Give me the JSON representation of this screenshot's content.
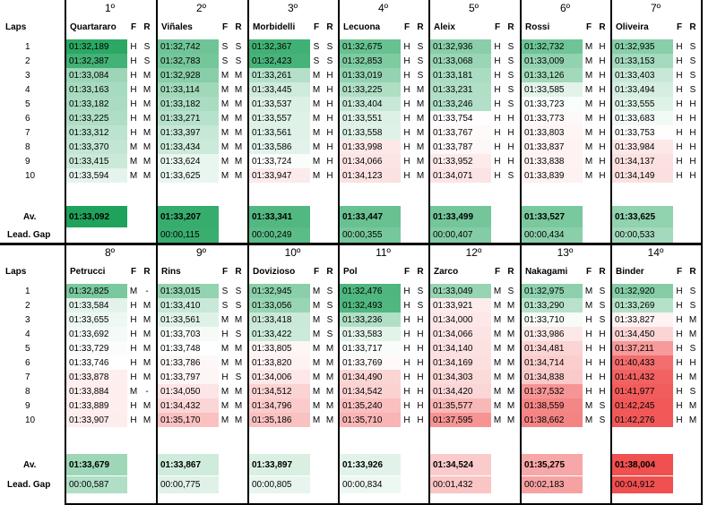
{
  "labels": {
    "laps": "Laps",
    "av": "Av.",
    "gap": "Lead. Gap",
    "f": "F",
    "r": "R"
  },
  "lap_numbers": [
    "1",
    "2",
    "3",
    "4",
    "5",
    "6",
    "7",
    "8",
    "9",
    "10"
  ],
  "colors": {
    "green_scale": "#1fa35c",
    "red_scale": "#f05050"
  },
  "blocks": [
    {
      "riders": [
        {
          "pos": "1º",
          "name": "Quartararo",
          "laps": [
            [
              "01:32,189",
              "H",
              "S"
            ],
            [
              "01:32,387",
              "H",
              "S"
            ],
            [
              "01:33,084",
              "H",
              "M"
            ],
            [
              "01:33,163",
              "H",
              "M"
            ],
            [
              "01:33,182",
              "H",
              "M"
            ],
            [
              "01:33,225",
              "H",
              "M"
            ],
            [
              "01:33,312",
              "H",
              "M"
            ],
            [
              "01:33,370",
              "M",
              "M"
            ],
            [
              "01:33,415",
              "M",
              "M"
            ],
            [
              "01:33,594",
              "M",
              "M"
            ]
          ],
          "av": "01:33,092",
          "gap": ""
        },
        {
          "pos": "2º",
          "name": "Viñales",
          "laps": [
            [
              "01:32,742",
              "S",
              "S"
            ],
            [
              "01:32,783",
              "S",
              "S"
            ],
            [
              "01:32,928",
              "M",
              "M"
            ],
            [
              "01:33,114",
              "M",
              "M"
            ],
            [
              "01:33,182",
              "M",
              "M"
            ],
            [
              "01:33,271",
              "M",
              "M"
            ],
            [
              "01:33,397",
              "M",
              "M"
            ],
            [
              "01:33,434",
              "M",
              "M"
            ],
            [
              "01:33,624",
              "M",
              "M"
            ],
            [
              "01:33,625",
              "M",
              "M"
            ]
          ],
          "av": "01:33,207",
          "gap": "00:00,115"
        },
        {
          "pos": "3º",
          "name": "Morbidelli",
          "laps": [
            [
              "01:32,367",
              "S",
              "S"
            ],
            [
              "01:32,423",
              "S",
              "S"
            ],
            [
              "01:33,261",
              "M",
              "H"
            ],
            [
              "01:33,445",
              "M",
              "H"
            ],
            [
              "01:33,537",
              "M",
              "H"
            ],
            [
              "01:33,557",
              "M",
              "H"
            ],
            [
              "01:33,561",
              "M",
              "H"
            ],
            [
              "01:33,586",
              "M",
              "H"
            ],
            [
              "01:33,724",
              "M",
              "H"
            ],
            [
              "01:33,947",
              "M",
              "H"
            ]
          ],
          "av": "01:33,341",
          "gap": "00:00,249"
        },
        {
          "pos": "4º",
          "name": "Lecuona",
          "laps": [
            [
              "01:32,675",
              "H",
              "S"
            ],
            [
              "01:32,853",
              "H",
              "S"
            ],
            [
              "01:33,019",
              "H",
              "S"
            ],
            [
              "01:33,225",
              "H",
              "M"
            ],
            [
              "01:33,404",
              "H",
              "M"
            ],
            [
              "01:33,551",
              "H",
              "M"
            ],
            [
              "01:33,558",
              "H",
              "M"
            ],
            [
              "01:33,998",
              "H",
              "M"
            ],
            [
              "01:34,066",
              "H",
              "M"
            ],
            [
              "01:34,123",
              "H",
              "M"
            ]
          ],
          "av": "01:33,447",
          "gap": "00:00,355"
        },
        {
          "pos": "5º",
          "name": "Aleix",
          "laps": [
            [
              "01:32,936",
              "H",
              "S"
            ],
            [
              "01:33,068",
              "H",
              "S"
            ],
            [
              "01:33,181",
              "H",
              "S"
            ],
            [
              "01:33,231",
              "H",
              "S"
            ],
            [
              "01:33,246",
              "H",
              "S"
            ],
            [
              "01:33,754",
              "H",
              "H"
            ],
            [
              "01:33,767",
              "H",
              "H"
            ],
            [
              "01:33,787",
              "H",
              "H"
            ],
            [
              "01:33,952",
              "H",
              "H"
            ],
            [
              "01:34,071",
              "H",
              "S"
            ]
          ],
          "av": "01:33,499",
          "gap": "00:00,407"
        },
        {
          "pos": "6º",
          "name": "Rossi",
          "laps": [
            [
              "01:32,732",
              "M",
              "H"
            ],
            [
              "01:33,009",
              "M",
              "H"
            ],
            [
              "01:33,126",
              "M",
              "H"
            ],
            [
              "01:33,585",
              "M",
              "H"
            ],
            [
              "01:33,723",
              "M",
              "H"
            ],
            [
              "01:33,773",
              "M",
              "H"
            ],
            [
              "01:33,803",
              "M",
              "H"
            ],
            [
              "01:33,837",
              "M",
              "H"
            ],
            [
              "01:33,838",
              "M",
              "H"
            ],
            [
              "01:33,839",
              "M",
              "H"
            ]
          ],
          "av": "01:33,527",
          "gap": "00:00,434"
        },
        {
          "pos": "7º",
          "name": "Oliveira",
          "laps": [
            [
              "01:32,935",
              "H",
              "S"
            ],
            [
              "01:33,153",
              "H",
              "S"
            ],
            [
              "01:33,403",
              "H",
              "S"
            ],
            [
              "01:33,494",
              "H",
              "S"
            ],
            [
              "01:33,555",
              "H",
              "H"
            ],
            [
              "01:33,683",
              "H",
              "H"
            ],
            [
              "01:33,753",
              "H",
              "H"
            ],
            [
              "01:33,984",
              "H",
              "H"
            ],
            [
              "01:34,137",
              "H",
              "H"
            ],
            [
              "01:34,149",
              "H",
              "H"
            ]
          ],
          "av": "01:33,625",
          "gap": "00:00,533"
        }
      ]
    },
    {
      "riders": [
        {
          "pos": "8º",
          "name": "Petrucci",
          "laps": [
            [
              "01:32,825",
              "M",
              "-"
            ],
            [
              "01:33,584",
              "H",
              "M"
            ],
            [
              "01:33,655",
              "H",
              "M"
            ],
            [
              "01:33,692",
              "H",
              "M"
            ],
            [
              "01:33,729",
              "H",
              "M"
            ],
            [
              "01:33,746",
              "H",
              "M"
            ],
            [
              "01:33,878",
              "H",
              "M"
            ],
            [
              "01:33,884",
              "M",
              "-"
            ],
            [
              "01:33,889",
              "H",
              "M"
            ],
            [
              "01:33,907",
              "H",
              "M"
            ]
          ],
          "av": "01:33,679",
          "gap": "00:00,587"
        },
        {
          "pos": "9º",
          "name": "Rins",
          "laps": [
            [
              "01:33,015",
              "S",
              "S"
            ],
            [
              "01:33,410",
              "S",
              "S"
            ],
            [
              "01:33,561",
              "M",
              "M"
            ],
            [
              "01:33,703",
              "H",
              "S"
            ],
            [
              "01:33,748",
              "M",
              "M"
            ],
            [
              "01:33,786",
              "M",
              "M"
            ],
            [
              "01:33,797",
              "H",
              "S"
            ],
            [
              "01:34,050",
              "M",
              "M"
            ],
            [
              "01:34,432",
              "M",
              "M"
            ],
            [
              "01:35,170",
              "M",
              "M"
            ]
          ],
          "av": "01:33,867",
          "gap": "00:00,775"
        },
        {
          "pos": "10º",
          "name": "Dovizioso",
          "laps": [
            [
              "01:32,945",
              "M",
              "S"
            ],
            [
              "01:33,056",
              "M",
              "S"
            ],
            [
              "01:33,418",
              "M",
              "S"
            ],
            [
              "01:33,422",
              "M",
              "S"
            ],
            [
              "01:33,805",
              "M",
              "M"
            ],
            [
              "01:33,820",
              "M",
              "M"
            ],
            [
              "01:34,006",
              "M",
              "M"
            ],
            [
              "01:34,512",
              "M",
              "M"
            ],
            [
              "01:34,796",
              "M",
              "M"
            ],
            [
              "01:35,186",
              "M",
              "M"
            ]
          ],
          "av": "01:33,897",
          "gap": "00:00,805"
        },
        {
          "pos": "11º",
          "name": "Pol",
          "laps": [
            [
              "01:32,476",
              "H",
              "S"
            ],
            [
              "01:32,493",
              "H",
              "S"
            ],
            [
              "01:33,236",
              "H",
              "H"
            ],
            [
              "01:33,583",
              "H",
              "H"
            ],
            [
              "01:33,717",
              "H",
              "H"
            ],
            [
              "01:33,769",
              "H",
              "H"
            ],
            [
              "01:34,490",
              "H",
              "H"
            ],
            [
              "01:34,542",
              "H",
              "H"
            ],
            [
              "01:35,240",
              "H",
              "H"
            ],
            [
              "01:35,710",
              "H",
              "H"
            ]
          ],
          "av": "01:33,926",
          "gap": "00:00,834"
        },
        {
          "pos": "12º",
          "name": "Zarco",
          "laps": [
            [
              "01:33,049",
              "M",
              "S"
            ],
            [
              "01:33,921",
              "M",
              "M"
            ],
            [
              "01:34,000",
              "M",
              "M"
            ],
            [
              "01:34,066",
              "M",
              "M"
            ],
            [
              "01:34,140",
              "M",
              "M"
            ],
            [
              "01:34,169",
              "M",
              "M"
            ],
            [
              "01:34,303",
              "M",
              "M"
            ],
            [
              "01:34,420",
              "M",
              "M"
            ],
            [
              "01:35,577",
              "M",
              "M"
            ],
            [
              "01:37,595",
              "M",
              "M"
            ]
          ],
          "av": "01:34,524",
          "gap": "00:01,432"
        },
        {
          "pos": "13º",
          "name": "Nakagami",
          "laps": [
            [
              "01:32,975",
              "M",
              "S"
            ],
            [
              "01:33,290",
              "M",
              "S"
            ],
            [
              "01:33,710",
              "H",
              "S"
            ],
            [
              "01:33,986",
              "H",
              "H"
            ],
            [
              "01:34,481",
              "H",
              "H"
            ],
            [
              "01:34,714",
              "H",
              "H"
            ],
            [
              "01:34,838",
              "H",
              "H"
            ],
            [
              "01:37,532",
              "H",
              "H"
            ],
            [
              "01:38,559",
              "M",
              "S"
            ],
            [
              "01:38,662",
              "M",
              "S"
            ]
          ],
          "av": "01:35,275",
          "gap": "00:02,183"
        },
        {
          "pos": "14º",
          "name": "Binder",
          "laps": [
            [
              "01:32,920",
              "H",
              "S"
            ],
            [
              "01:33,269",
              "H",
              "S"
            ],
            [
              "01:33,827",
              "H",
              "M"
            ],
            [
              "01:34,450",
              "H",
              "M"
            ],
            [
              "01:37,211",
              "H",
              "S"
            ],
            [
              "01:40,433",
              "H",
              "H"
            ],
            [
              "01:41,432",
              "H",
              "M"
            ],
            [
              "01:41,977",
              "H",
              "S"
            ],
            [
              "01:42,245",
              "H",
              "M"
            ],
            [
              "01:42,276",
              "H",
              "M"
            ]
          ],
          "av": "01:38,004",
          "gap": "00:04,912"
        }
      ]
    }
  ]
}
